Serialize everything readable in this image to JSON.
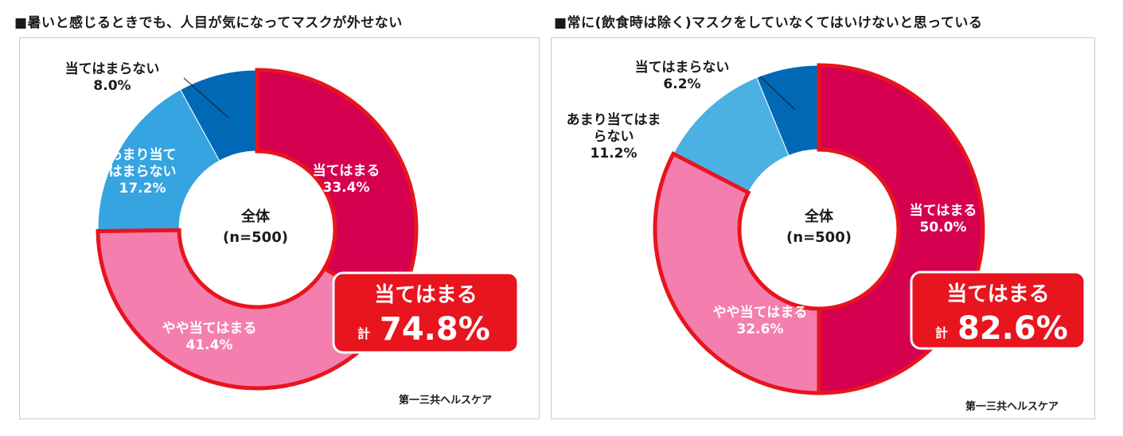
{
  "chart_data": [
    {
      "type": "pie",
      "title": "■暑いと感じるときでも、人目が気になってマスクが外せない",
      "center_label": [
        "全体",
        "(n=500)"
      ],
      "categories": [
        "当てはまる",
        "やや当てはまる",
        "あまり当てはまらない",
        "当てはまらない"
      ],
      "values": [
        33.4,
        41.4,
        17.2,
        8.0
      ],
      "value_labels": [
        "33.4%",
        "41.4%",
        "17.2%",
        "8.0%"
      ],
      "label_lines": [
        [
          "当てはまる"
        ],
        [
          "やや当てはまる"
        ],
        [
          "あまり当て",
          "はまらない"
        ],
        [
          "当てはまらない"
        ]
      ],
      "colors": [
        "#D5004F",
        "#F47FAF",
        "#35A4E1",
        "#0068B5"
      ],
      "highlight_series": [
        "当てはまる",
        "やや当てはまる"
      ],
      "highlight_color": "#E8141E",
      "callout": {
        "heading": "当てはまる",
        "prefix": "計",
        "value": "74.8%"
      },
      "credit": "第一三共ヘルスケア"
    },
    {
      "type": "pie",
      "title": "■常に(飲食時は除く)マスクをしていなくてはいけないと思っている",
      "center_label": [
        "全体",
        "(n=500)"
      ],
      "categories": [
        "当てはまる",
        "やや当てはまる",
        "あまり当てはまらない",
        "当てはまらない"
      ],
      "values": [
        50.0,
        32.6,
        11.2,
        6.2
      ],
      "value_labels": [
        "50.0%",
        "32.6%",
        "11.2%",
        "6.2%"
      ],
      "label_lines": [
        [
          "当てはまる"
        ],
        [
          "やや当てはまる"
        ],
        [
          "あまり当てはま",
          "らない"
        ],
        [
          "当てはまらない"
        ]
      ],
      "colors": [
        "#D5004F",
        "#F47FAF",
        "#4BB0E2",
        "#0068B5"
      ],
      "highlight_series": [
        "当てはまる",
        "やや当てはまる"
      ],
      "highlight_color": "#E8141E",
      "callout": {
        "heading": "当てはまる",
        "prefix": "計",
        "value": "82.6%"
      },
      "credit": "第一三共ヘルスケア"
    }
  ]
}
